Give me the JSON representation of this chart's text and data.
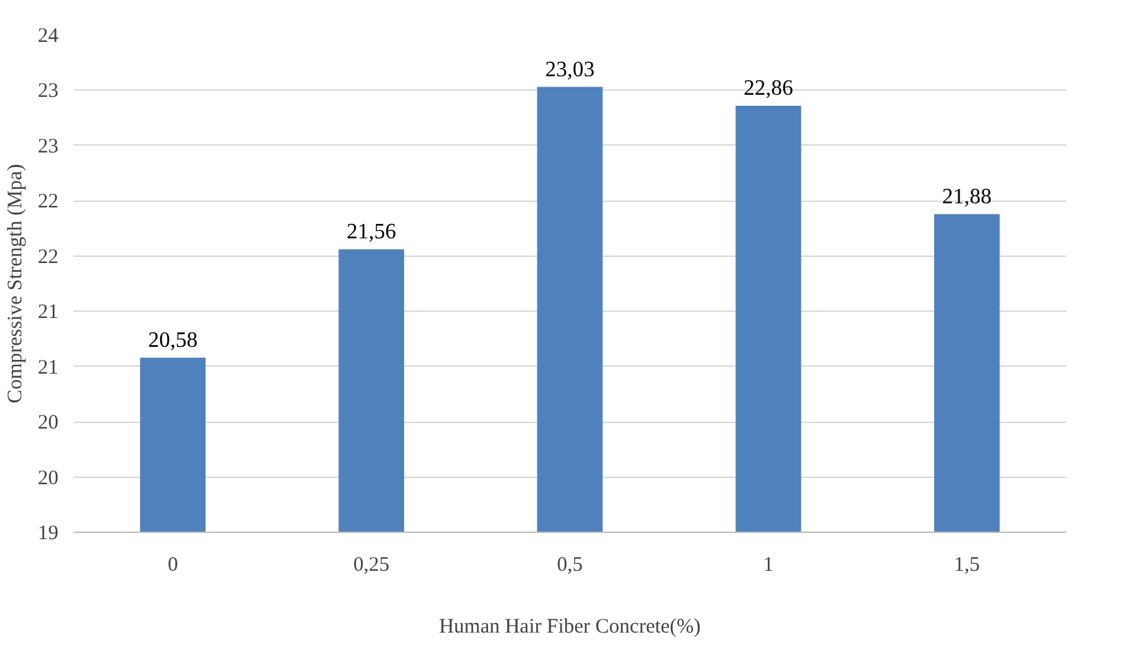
{
  "chart_data": {
    "type": "bar",
    "xlabel": "Human Hair Fiber Concrete(%)",
    "ylabel": "Compressive Strength (Mpa)",
    "categories": [
      "0",
      "0,25",
      "0,5",
      "1",
      "1,5"
    ],
    "values": [
      20.58,
      21.56,
      23.03,
      22.86,
      21.88
    ],
    "value_labels": [
      "20,58",
      "21,56",
      "23,03",
      "22,86",
      "21,88"
    ],
    "color": "#4f81bd",
    "ylim": [
      19,
      23.5
    ],
    "yticks": [
      19,
      {
        "value": 19.5,
        "label": "20"
      },
      20,
      {
        "value": 20.5,
        "label": "21"
      },
      21,
      {
        "value": 21.5,
        "label": "22"
      },
      22,
      {
        "value": 22.5,
        "label": "23"
      },
      23,
      {
        "value": 23.5,
        "label": "24"
      }
    ],
    "grid": "y"
  }
}
